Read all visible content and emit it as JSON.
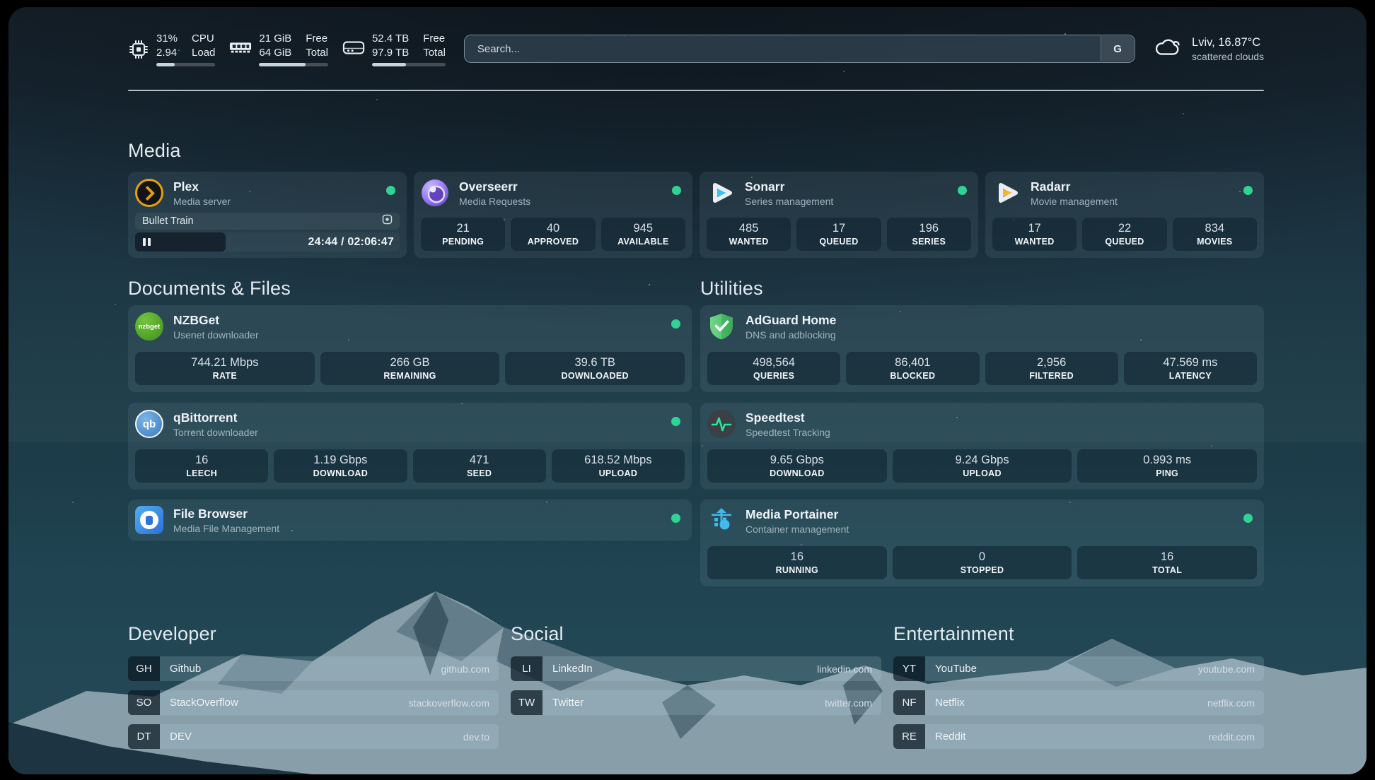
{
  "topbar": {
    "stats": [
      {
        "icon": "cpu-icon",
        "values": [
          "31%",
          "2.94"
        ],
        "labels": [
          "CPU",
          "Load"
        ],
        "progress_pct": 31
      },
      {
        "icon": "memory-icon",
        "values": [
          "21 GiB",
          "64 GiB"
        ],
        "labels": [
          "Free",
          "Total"
        ],
        "progress_pct": 67
      },
      {
        "icon": "disk-icon",
        "values": [
          "52.4 TB",
          "97.9 TB"
        ],
        "labels": [
          "Free",
          "Total"
        ],
        "progress_pct": 46
      }
    ],
    "search": {
      "placeholder": "Search...",
      "provider_label": "G"
    },
    "weather": {
      "summary": "Lviv, 16.87°C",
      "condition": "scattered clouds"
    }
  },
  "media": {
    "title": "Media",
    "plex": {
      "name": "Plex",
      "desc": "Media server",
      "stream": {
        "title": "Bullet Train",
        "time": "24:44 / 02:06:47"
      }
    },
    "overseerr": {
      "name": "Overseerr",
      "desc": "Media Requests",
      "stats": [
        {
          "value": "21",
          "label": "PENDING"
        },
        {
          "value": "40",
          "label": "APPROVED"
        },
        {
          "value": "945",
          "label": "AVAILABLE"
        }
      ]
    },
    "sonarr": {
      "name": "Sonarr",
      "desc": "Series management",
      "stats": [
        {
          "value": "485",
          "label": "WANTED"
        },
        {
          "value": "17",
          "label": "QUEUED"
        },
        {
          "value": "196",
          "label": "SERIES"
        }
      ]
    },
    "radarr": {
      "name": "Radarr",
      "desc": "Movie management",
      "stats": [
        {
          "value": "17",
          "label": "WANTED"
        },
        {
          "value": "22",
          "label": "QUEUED"
        },
        {
          "value": "834",
          "label": "MOVIES"
        }
      ]
    }
  },
  "documents": {
    "title": "Documents & Files",
    "nzbget": {
      "name": "NZBGet",
      "desc": "Usenet downloader",
      "logo_text": "nzbget",
      "stats": [
        {
          "value": "744.21 Mbps",
          "label": "RATE"
        },
        {
          "value": "266 GB",
          "label": "REMAINING"
        },
        {
          "value": "39.6 TB",
          "label": "DOWNLOADED"
        }
      ]
    },
    "qbittorrent": {
      "name": "qBittorrent",
      "desc": "Torrent downloader",
      "logo_text": "qb",
      "stats": [
        {
          "value": "16",
          "label": "LEECH"
        },
        {
          "value": "1.19 Gbps",
          "label": "DOWNLOAD"
        },
        {
          "value": "471",
          "label": "SEED"
        },
        {
          "value": "618.52 Mbps",
          "label": "UPLOAD"
        }
      ]
    },
    "filebrowser": {
      "name": "File Browser",
      "desc": "Media File Management"
    }
  },
  "utilities": {
    "title": "Utilities",
    "adguard": {
      "name": "AdGuard Home",
      "desc": "DNS and adblocking",
      "stats": [
        {
          "value": "498,564",
          "label": "QUERIES"
        },
        {
          "value": "86,401",
          "label": "BLOCKED"
        },
        {
          "value": "2,956",
          "label": "FILTERED"
        },
        {
          "value": "47.569 ms",
          "label": "LATENCY"
        }
      ]
    },
    "speedtest": {
      "name": "Speedtest",
      "desc": "Speedtest Tracking",
      "stats": [
        {
          "value": "9.65 Gbps",
          "label": "DOWNLOAD"
        },
        {
          "value": "9.24 Gbps",
          "label": "UPLOAD"
        },
        {
          "value": "0.993 ms",
          "label": "PING"
        }
      ]
    },
    "portainer": {
      "name": "Media Portainer",
      "desc": "Container management",
      "stats": [
        {
          "value": "16",
          "label": "RUNNING"
        },
        {
          "value": "0",
          "label": "STOPPED"
        },
        {
          "value": "16",
          "label": "TOTAL"
        }
      ]
    }
  },
  "bookmarks": [
    {
      "title": "Developer",
      "links": [
        {
          "abbr": "GH",
          "name": "Github",
          "url": "github.com"
        },
        {
          "abbr": "SO",
          "name": "StackOverflow",
          "url": "stackoverflow.com"
        },
        {
          "abbr": "DT",
          "name": "DEV",
          "url": "dev.to"
        }
      ]
    },
    {
      "title": "Social",
      "links": [
        {
          "abbr": "LI",
          "name": "LinkedIn",
          "url": "linkedin.com"
        },
        {
          "abbr": "TW",
          "name": "Twitter",
          "url": "twitter.com"
        }
      ]
    },
    {
      "title": "Entertainment",
      "links": [
        {
          "abbr": "YT",
          "name": "YouTube",
          "url": "youtube.com"
        },
        {
          "abbr": "NF",
          "name": "Netflix",
          "url": "netflix.com"
        },
        {
          "abbr": "RE",
          "name": "Reddit",
          "url": "reddit.com"
        }
      ]
    }
  ],
  "colors": {
    "status_online": "#2fd394",
    "divider": "#d0dce4"
  }
}
